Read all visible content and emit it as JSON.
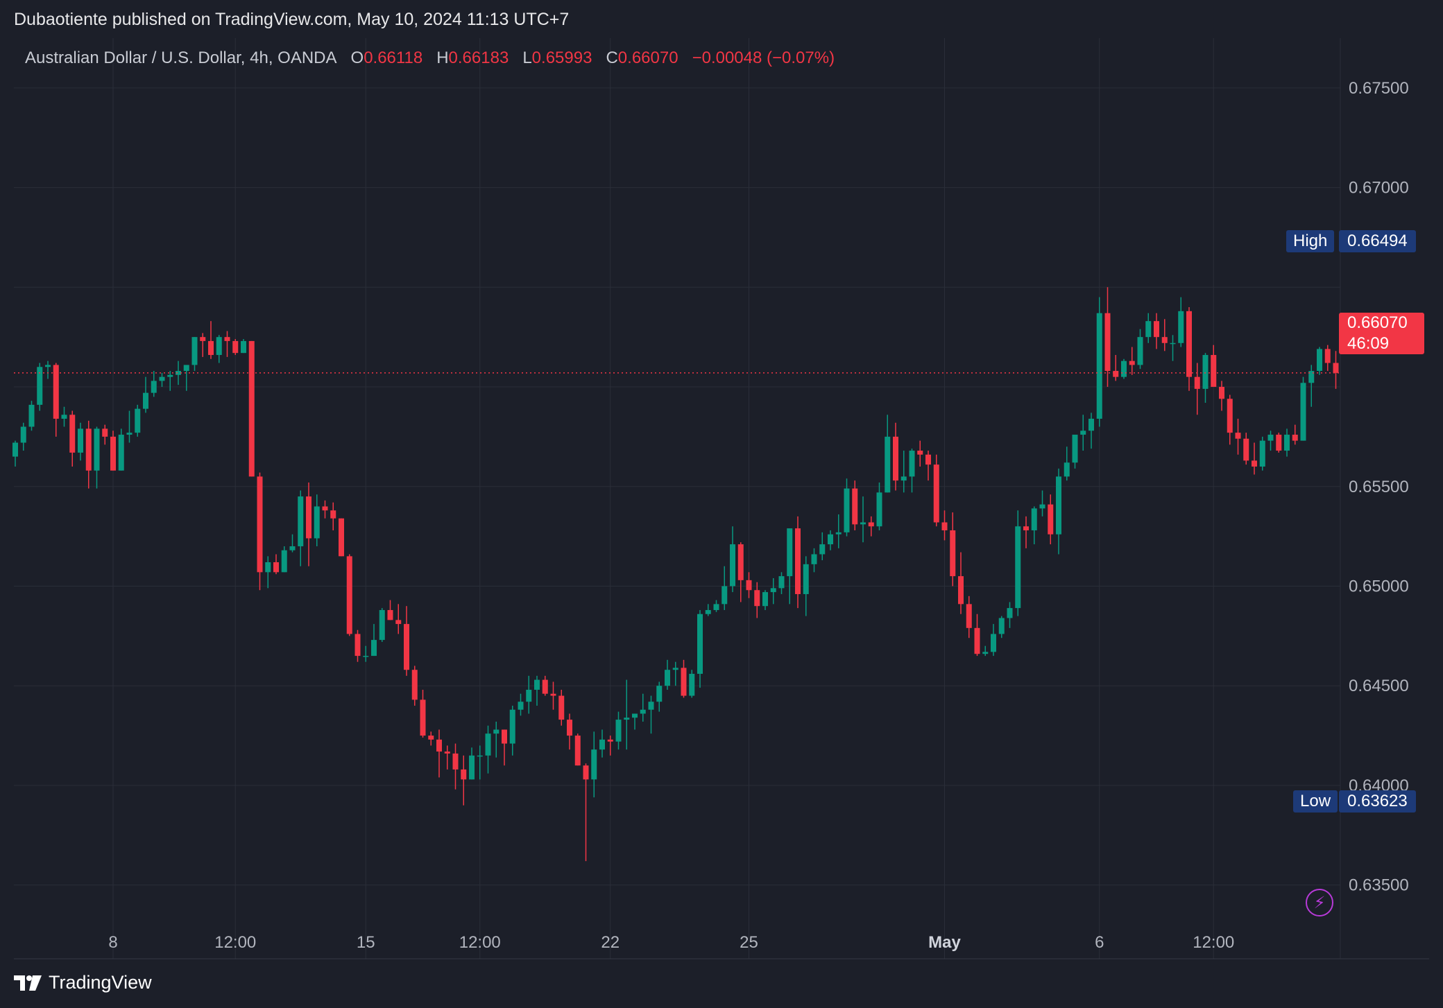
{
  "header": {
    "published_line": "Dubaotiente published on TradingView.com, May 10, 2024 11:13 UTC+7"
  },
  "legend": {
    "symbol": "Australian Dollar / U.S. Dollar, 4h, OANDA",
    "o_label": "O",
    "o_value": "0.66118",
    "h_label": "H",
    "h_value": "0.66183",
    "l_label": "L",
    "l_value": "0.65993",
    "c_label": "C",
    "c_value": "0.66070",
    "change": "−0.00048 (−0.07%)"
  },
  "tags": {
    "high_label": "High",
    "high_value": "0.66494",
    "low_label": "Low",
    "low_value": "0.63623",
    "current_value": "0.66070",
    "countdown": "46:09"
  },
  "brand": {
    "name": "TradingView"
  },
  "colors": {
    "background": "#1c1f29",
    "up": "#089981",
    "down": "#f23645",
    "grid": "#2a2e39",
    "axis_text": "#b2b5be",
    "tag_blue": "#1d3a78"
  },
  "chart_data": {
    "type": "candlestick",
    "symbol": "AUDUSD",
    "interval": "4h",
    "ylim": [
      0.6313,
      0.6775
    ],
    "y_ticks": [
      0.675,
      0.67,
      0.665,
      0.66,
      0.655,
      0.65,
      0.645,
      0.64,
      0.635
    ],
    "y_tick_labels": [
      "0.67500",
      "0.67000",
      "",
      "",
      "0.65500",
      "0.65000",
      "0.64500",
      "0.64000",
      "0.63500"
    ],
    "x_ticks": [
      {
        "index": 12,
        "label": "8"
      },
      {
        "index": 27,
        "label": "12:00"
      },
      {
        "index": 43,
        "label": "15"
      },
      {
        "index": 57,
        "label": "12:00"
      },
      {
        "index": 73,
        "label": "22"
      },
      {
        "index": 90,
        "label": "25"
      },
      {
        "index": 114,
        "label": "May"
      },
      {
        "index": 133,
        "label": "6"
      },
      {
        "index": 147,
        "label": "12:00"
      }
    ],
    "x_label_bold": [
      "May"
    ],
    "current_price": 0.6607,
    "candles": [
      {
        "o": 0.6565,
        "h": 0.6573,
        "l": 0.656,
        "c": 0.6572
      },
      {
        "o": 0.6572,
        "h": 0.6582,
        "l": 0.6568,
        "c": 0.658
      },
      {
        "o": 0.658,
        "h": 0.6593,
        "l": 0.6578,
        "c": 0.6591
      },
      {
        "o": 0.6591,
        "h": 0.6612,
        "l": 0.6588,
        "c": 0.661
      },
      {
        "o": 0.661,
        "h": 0.6613,
        "l": 0.6604,
        "c": 0.6611
      },
      {
        "o": 0.6611,
        "h": 0.6612,
        "l": 0.6575,
        "c": 0.6584
      },
      {
        "o": 0.6584,
        "h": 0.659,
        "l": 0.658,
        "c": 0.6586
      },
      {
        "o": 0.6586,
        "h": 0.6588,
        "l": 0.656,
        "c": 0.6567
      },
      {
        "o": 0.6567,
        "h": 0.6582,
        "l": 0.6563,
        "c": 0.6579
      },
      {
        "o": 0.6579,
        "h": 0.6583,
        "l": 0.6549,
        "c": 0.6558
      },
      {
        "o": 0.6558,
        "h": 0.658,
        "l": 0.6549,
        "c": 0.6579
      },
      {
        "o": 0.6579,
        "h": 0.6581,
        "l": 0.6571,
        "c": 0.6575
      },
      {
        "o": 0.6575,
        "h": 0.6578,
        "l": 0.6558,
        "c": 0.6558
      },
      {
        "o": 0.6558,
        "h": 0.6579,
        "l": 0.6558,
        "c": 0.6576
      },
      {
        "o": 0.6576,
        "h": 0.6588,
        "l": 0.6572,
        "c": 0.6577
      },
      {
        "o": 0.6577,
        "h": 0.6591,
        "l": 0.6575,
        "c": 0.6589
      },
      {
        "o": 0.6589,
        "h": 0.6605,
        "l": 0.6587,
        "c": 0.6597
      },
      {
        "o": 0.6597,
        "h": 0.6608,
        "l": 0.6595,
        "c": 0.6603
      },
      {
        "o": 0.6603,
        "h": 0.6607,
        "l": 0.66,
        "c": 0.6605
      },
      {
        "o": 0.6605,
        "h": 0.6608,
        "l": 0.6598,
        "c": 0.6606
      },
      {
        "o": 0.6606,
        "h": 0.6613,
        "l": 0.6601,
        "c": 0.6608
      },
      {
        "o": 0.6608,
        "h": 0.661,
        "l": 0.6598,
        "c": 0.6611
      },
      {
        "o": 0.6611,
        "h": 0.6625,
        "l": 0.6608,
        "c": 0.6625
      },
      {
        "o": 0.6625,
        "h": 0.6627,
        "l": 0.6615,
        "c": 0.6623
      },
      {
        "o": 0.6623,
        "h": 0.6633,
        "l": 0.6614,
        "c": 0.6616
      },
      {
        "o": 0.6616,
        "h": 0.6626,
        "l": 0.6612,
        "c": 0.6625
      },
      {
        "o": 0.6625,
        "h": 0.6628,
        "l": 0.6615,
        "c": 0.6623
      },
      {
        "o": 0.6623,
        "h": 0.6624,
        "l": 0.6616,
        "c": 0.6617
      },
      {
        "o": 0.6617,
        "h": 0.6624,
        "l": 0.6617,
        "c": 0.6623
      },
      {
        "o": 0.6623,
        "h": 0.6623,
        "l": 0.6555,
        "c": 0.6555
      },
      {
        "o": 0.6555,
        "h": 0.6557,
        "l": 0.6498,
        "c": 0.6507
      },
      {
        "o": 0.6507,
        "h": 0.6515,
        "l": 0.6499,
        "c": 0.6512
      },
      {
        "o": 0.6512,
        "h": 0.6516,
        "l": 0.6506,
        "c": 0.6507
      },
      {
        "o": 0.6507,
        "h": 0.652,
        "l": 0.6507,
        "c": 0.6518
      },
      {
        "o": 0.6518,
        "h": 0.6526,
        "l": 0.6517,
        "c": 0.652
      },
      {
        "o": 0.652,
        "h": 0.6548,
        "l": 0.651,
        "c": 0.6545
      },
      {
        "o": 0.6545,
        "h": 0.6552,
        "l": 0.651,
        "c": 0.6524
      },
      {
        "o": 0.6524,
        "h": 0.6546,
        "l": 0.652,
        "c": 0.654
      },
      {
        "o": 0.654,
        "h": 0.6543,
        "l": 0.6534,
        "c": 0.6538
      },
      {
        "o": 0.6538,
        "h": 0.6542,
        "l": 0.6528,
        "c": 0.6534
      },
      {
        "o": 0.6534,
        "h": 0.6534,
        "l": 0.6515,
        "c": 0.6515
      },
      {
        "o": 0.6515,
        "h": 0.6516,
        "l": 0.6475,
        "c": 0.6476
      },
      {
        "o": 0.6476,
        "h": 0.6478,
        "l": 0.6462,
        "c": 0.6465
      },
      {
        "o": 0.6465,
        "h": 0.647,
        "l": 0.6462,
        "c": 0.6465
      },
      {
        "o": 0.6465,
        "h": 0.6481,
        "l": 0.6465,
        "c": 0.6473
      },
      {
        "o": 0.6473,
        "h": 0.6489,
        "l": 0.6472,
        "c": 0.6488
      },
      {
        "o": 0.6488,
        "h": 0.6493,
        "l": 0.6483,
        "c": 0.6483
      },
      {
        "o": 0.6483,
        "h": 0.6491,
        "l": 0.6476,
        "c": 0.6481
      },
      {
        "o": 0.6481,
        "h": 0.649,
        "l": 0.6455,
        "c": 0.6458
      },
      {
        "o": 0.6458,
        "h": 0.646,
        "l": 0.644,
        "c": 0.6443
      },
      {
        "o": 0.6443,
        "h": 0.6448,
        "l": 0.6424,
        "c": 0.6425
      },
      {
        "o": 0.6425,
        "h": 0.6427,
        "l": 0.642,
        "c": 0.6423
      },
      {
        "o": 0.6423,
        "h": 0.6428,
        "l": 0.6404,
        "c": 0.6417
      },
      {
        "o": 0.6417,
        "h": 0.642,
        "l": 0.6408,
        "c": 0.6416
      },
      {
        "o": 0.6416,
        "h": 0.6421,
        "l": 0.6398,
        "c": 0.6408
      },
      {
        "o": 0.6408,
        "h": 0.6415,
        "l": 0.639,
        "c": 0.6403
      },
      {
        "o": 0.6403,
        "h": 0.6419,
        "l": 0.6403,
        "c": 0.6415
      },
      {
        "o": 0.6415,
        "h": 0.642,
        "l": 0.6403,
        "c": 0.6415
      },
      {
        "o": 0.6415,
        "h": 0.643,
        "l": 0.6406,
        "c": 0.6426
      },
      {
        "o": 0.6426,
        "h": 0.6432,
        "l": 0.6414,
        "c": 0.6428
      },
      {
        "o": 0.6428,
        "h": 0.6428,
        "l": 0.641,
        "c": 0.6421
      },
      {
        "o": 0.6421,
        "h": 0.644,
        "l": 0.6415,
        "c": 0.6438
      },
      {
        "o": 0.6438,
        "h": 0.6446,
        "l": 0.6435,
        "c": 0.6442
      },
      {
        "o": 0.6442,
        "h": 0.6455,
        "l": 0.6436,
        "c": 0.6448
      },
      {
        "o": 0.6448,
        "h": 0.6455,
        "l": 0.644,
        "c": 0.6453
      },
      {
        "o": 0.6453,
        "h": 0.6455,
        "l": 0.6445,
        "c": 0.6446
      },
      {
        "o": 0.6446,
        "h": 0.6452,
        "l": 0.6438,
        "c": 0.6445
      },
      {
        "o": 0.6445,
        "h": 0.6448,
        "l": 0.643,
        "c": 0.6433
      },
      {
        "o": 0.6433,
        "h": 0.6436,
        "l": 0.6418,
        "c": 0.6425
      },
      {
        "o": 0.6425,
        "h": 0.6426,
        "l": 0.641,
        "c": 0.641
      },
      {
        "o": 0.641,
        "h": 0.6411,
        "l": 0.6362,
        "c": 0.6403
      },
      {
        "o": 0.6403,
        "h": 0.6427,
        "l": 0.6394,
        "c": 0.6418
      },
      {
        "o": 0.6418,
        "h": 0.6428,
        "l": 0.6414,
        "c": 0.6423
      },
      {
        "o": 0.6423,
        "h": 0.6425,
        "l": 0.6415,
        "c": 0.6422
      },
      {
        "o": 0.6422,
        "h": 0.6437,
        "l": 0.6418,
        "c": 0.6433
      },
      {
        "o": 0.6433,
        "h": 0.6453,
        "l": 0.6418,
        "c": 0.6434
      },
      {
        "o": 0.6434,
        "h": 0.6436,
        "l": 0.6428,
        "c": 0.6436
      },
      {
        "o": 0.6436,
        "h": 0.6446,
        "l": 0.6432,
        "c": 0.6438
      },
      {
        "o": 0.6438,
        "h": 0.6445,
        "l": 0.6426,
        "c": 0.6442
      },
      {
        "o": 0.6442,
        "h": 0.6452,
        "l": 0.6437,
        "c": 0.645
      },
      {
        "o": 0.645,
        "h": 0.6463,
        "l": 0.6448,
        "c": 0.6458
      },
      {
        "o": 0.6458,
        "h": 0.6462,
        "l": 0.645,
        "c": 0.6459
      },
      {
        "o": 0.6459,
        "h": 0.6463,
        "l": 0.6444,
        "c": 0.6445
      },
      {
        "o": 0.6445,
        "h": 0.6458,
        "l": 0.6444,
        "c": 0.6456
      },
      {
        "o": 0.6456,
        "h": 0.6488,
        "l": 0.6449,
        "c": 0.6486
      },
      {
        "o": 0.6486,
        "h": 0.6491,
        "l": 0.6485,
        "c": 0.6488
      },
      {
        "o": 0.6488,
        "h": 0.6493,
        "l": 0.6487,
        "c": 0.6491
      },
      {
        "o": 0.6491,
        "h": 0.651,
        "l": 0.6488,
        "c": 0.65
      },
      {
        "o": 0.65,
        "h": 0.653,
        "l": 0.6497,
        "c": 0.6521
      },
      {
        "o": 0.6521,
        "h": 0.6522,
        "l": 0.6492,
        "c": 0.6503
      },
      {
        "o": 0.6503,
        "h": 0.6507,
        "l": 0.6494,
        "c": 0.6498
      },
      {
        "o": 0.6498,
        "h": 0.6502,
        "l": 0.6484,
        "c": 0.649
      },
      {
        "o": 0.649,
        "h": 0.6498,
        "l": 0.6488,
        "c": 0.6497
      },
      {
        "o": 0.6497,
        "h": 0.6504,
        "l": 0.6491,
        "c": 0.6499
      },
      {
        "o": 0.6499,
        "h": 0.6507,
        "l": 0.6496,
        "c": 0.6505
      },
      {
        "o": 0.6505,
        "h": 0.6528,
        "l": 0.6491,
        "c": 0.6529
      },
      {
        "o": 0.6529,
        "h": 0.6535,
        "l": 0.6489,
        "c": 0.6496
      },
      {
        "o": 0.6496,
        "h": 0.6515,
        "l": 0.6485,
        "c": 0.6511
      },
      {
        "o": 0.6511,
        "h": 0.6519,
        "l": 0.6507,
        "c": 0.6516
      },
      {
        "o": 0.6516,
        "h": 0.6527,
        "l": 0.6513,
        "c": 0.6521
      },
      {
        "o": 0.6521,
        "h": 0.6528,
        "l": 0.6518,
        "c": 0.6526
      },
      {
        "o": 0.6526,
        "h": 0.6536,
        "l": 0.6519,
        "c": 0.6527
      },
      {
        "o": 0.6527,
        "h": 0.6554,
        "l": 0.6525,
        "c": 0.6549
      },
      {
        "o": 0.6549,
        "h": 0.6553,
        "l": 0.6528,
        "c": 0.6531
      },
      {
        "o": 0.6531,
        "h": 0.6545,
        "l": 0.6522,
        "c": 0.6532
      },
      {
        "o": 0.6532,
        "h": 0.6535,
        "l": 0.6525,
        "c": 0.653
      },
      {
        "o": 0.653,
        "h": 0.6552,
        "l": 0.6528,
        "c": 0.6547
      },
      {
        "o": 0.6547,
        "h": 0.6586,
        "l": 0.6547,
        "c": 0.6575
      },
      {
        "o": 0.6575,
        "h": 0.6582,
        "l": 0.6548,
        "c": 0.6553
      },
      {
        "o": 0.6553,
        "h": 0.6568,
        "l": 0.6547,
        "c": 0.6555
      },
      {
        "o": 0.6555,
        "h": 0.6569,
        "l": 0.6547,
        "c": 0.6568
      },
      {
        "o": 0.6568,
        "h": 0.6573,
        "l": 0.656,
        "c": 0.6566
      },
      {
        "o": 0.6566,
        "h": 0.6568,
        "l": 0.6553,
        "c": 0.6561
      },
      {
        "o": 0.6561,
        "h": 0.6566,
        "l": 0.653,
        "c": 0.6532
      },
      {
        "o": 0.6532,
        "h": 0.6538,
        "l": 0.6523,
        "c": 0.6528
      },
      {
        "o": 0.6528,
        "h": 0.6537,
        "l": 0.65,
        "c": 0.6505
      },
      {
        "o": 0.6505,
        "h": 0.6517,
        "l": 0.6486,
        "c": 0.6491
      },
      {
        "o": 0.6491,
        "h": 0.6495,
        "l": 0.6474,
        "c": 0.6479
      },
      {
        "o": 0.6479,
        "h": 0.6486,
        "l": 0.6465,
        "c": 0.6466
      },
      {
        "o": 0.6466,
        "h": 0.647,
        "l": 0.6465,
        "c": 0.6467
      },
      {
        "o": 0.6467,
        "h": 0.6481,
        "l": 0.6465,
        "c": 0.6476
      },
      {
        "o": 0.6476,
        "h": 0.6485,
        "l": 0.6474,
        "c": 0.6484
      },
      {
        "o": 0.6484,
        "h": 0.6492,
        "l": 0.6479,
        "c": 0.6489
      },
      {
        "o": 0.6489,
        "h": 0.6538,
        "l": 0.6485,
        "c": 0.653
      },
      {
        "o": 0.653,
        "h": 0.6535,
        "l": 0.6519,
        "c": 0.6528
      },
      {
        "o": 0.6528,
        "h": 0.654,
        "l": 0.6521,
        "c": 0.6539
      },
      {
        "o": 0.6539,
        "h": 0.6548,
        "l": 0.6535,
        "c": 0.6541
      },
      {
        "o": 0.6541,
        "h": 0.6546,
        "l": 0.6521,
        "c": 0.6526
      },
      {
        "o": 0.6526,
        "h": 0.6559,
        "l": 0.6516,
        "c": 0.6555
      },
      {
        "o": 0.6555,
        "h": 0.657,
        "l": 0.6553,
        "c": 0.6562
      },
      {
        "o": 0.6562,
        "h": 0.6575,
        "l": 0.6559,
        "c": 0.6576
      },
      {
        "o": 0.6576,
        "h": 0.6586,
        "l": 0.6568,
        "c": 0.6578
      },
      {
        "o": 0.6578,
        "h": 0.6587,
        "l": 0.6569,
        "c": 0.6584
      },
      {
        "o": 0.6584,
        "h": 0.6645,
        "l": 0.658,
        "c": 0.6637
      },
      {
        "o": 0.6637,
        "h": 0.665,
        "l": 0.66,
        "c": 0.6608
      },
      {
        "o": 0.6608,
        "h": 0.6616,
        "l": 0.6603,
        "c": 0.6605
      },
      {
        "o": 0.6605,
        "h": 0.6614,
        "l": 0.6604,
        "c": 0.6613
      },
      {
        "o": 0.6613,
        "h": 0.662,
        "l": 0.6606,
        "c": 0.6611
      },
      {
        "o": 0.6611,
        "h": 0.6629,
        "l": 0.6609,
        "c": 0.6625
      },
      {
        "o": 0.6625,
        "h": 0.6637,
        "l": 0.6622,
        "c": 0.6633
      },
      {
        "o": 0.6633,
        "h": 0.6637,
        "l": 0.6619,
        "c": 0.6625
      },
      {
        "o": 0.6625,
        "h": 0.6634,
        "l": 0.6618,
        "c": 0.6622
      },
      {
        "o": 0.6622,
        "h": 0.6626,
        "l": 0.6613,
        "c": 0.6622
      },
      {
        "o": 0.6622,
        "h": 0.6645,
        "l": 0.662,
        "c": 0.6638
      },
      {
        "o": 0.6638,
        "h": 0.664,
        "l": 0.6598,
        "c": 0.6605
      },
      {
        "o": 0.6605,
        "h": 0.6612,
        "l": 0.6586,
        "c": 0.6599
      },
      {
        "o": 0.6599,
        "h": 0.6617,
        "l": 0.6592,
        "c": 0.6616
      },
      {
        "o": 0.6616,
        "h": 0.6621,
        "l": 0.66,
        "c": 0.66
      },
      {
        "o": 0.66,
        "h": 0.6603,
        "l": 0.6588,
        "c": 0.6594
      },
      {
        "o": 0.6594,
        "h": 0.6596,
        "l": 0.6571,
        "c": 0.6577
      },
      {
        "o": 0.6577,
        "h": 0.6584,
        "l": 0.6566,
        "c": 0.6574
      },
      {
        "o": 0.6574,
        "h": 0.6577,
        "l": 0.6561,
        "c": 0.6563
      },
      {
        "o": 0.6563,
        "h": 0.6572,
        "l": 0.6556,
        "c": 0.656
      },
      {
        "o": 0.656,
        "h": 0.6575,
        "l": 0.6558,
        "c": 0.6573
      },
      {
        "o": 0.6573,
        "h": 0.6578,
        "l": 0.6568,
        "c": 0.6576
      },
      {
        "o": 0.6576,
        "h": 0.6577,
        "l": 0.6567,
        "c": 0.6568
      },
      {
        "o": 0.6568,
        "h": 0.6579,
        "l": 0.6565,
        "c": 0.6576
      },
      {
        "o": 0.6576,
        "h": 0.6581,
        "l": 0.6571,
        "c": 0.6573
      },
      {
        "o": 0.6573,
        "h": 0.6605,
        "l": 0.6573,
        "c": 0.6602
      },
      {
        "o": 0.6602,
        "h": 0.6611,
        "l": 0.659,
        "c": 0.6608
      },
      {
        "o": 0.6608,
        "h": 0.662,
        "l": 0.6606,
        "c": 0.6619
      },
      {
        "o": 0.6619,
        "h": 0.6621,
        "l": 0.6608,
        "c": 0.6612
      },
      {
        "o": 0.6612,
        "h": 0.6618,
        "l": 0.6599,
        "c": 0.6607
      }
    ]
  }
}
